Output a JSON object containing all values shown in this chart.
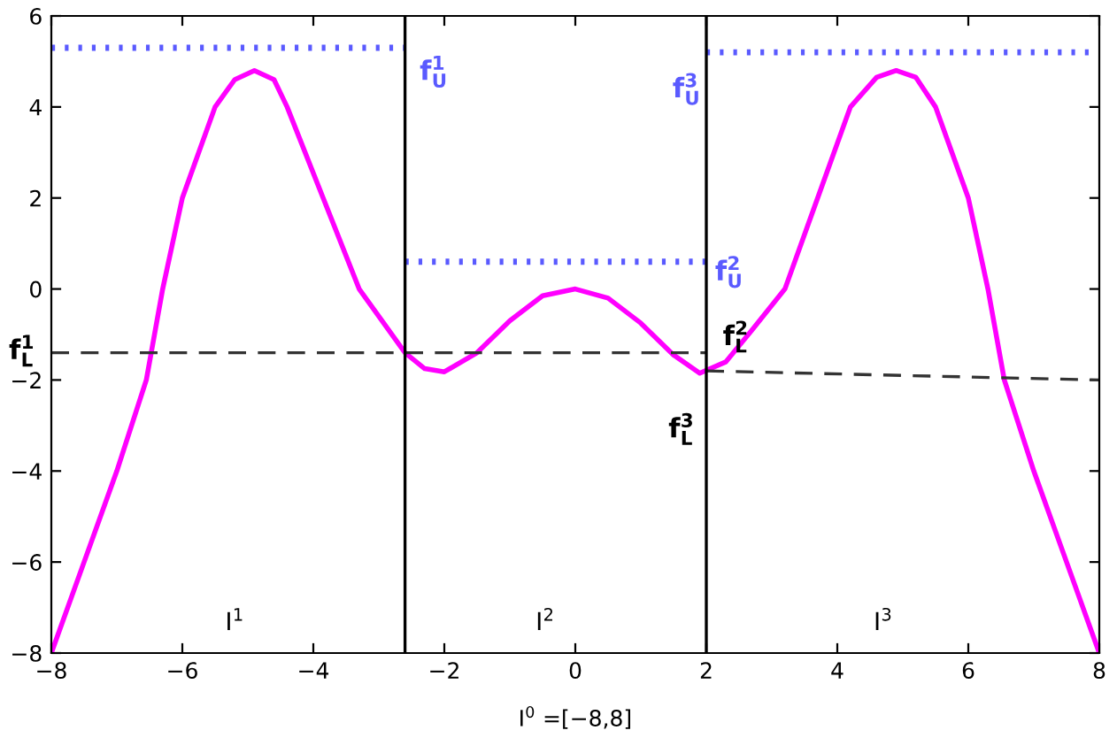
{
  "chart_data": {
    "type": "line",
    "xlabel": "I$^{0}$ =[−8,8]",
    "xlim": [
      -8,
      8
    ],
    "xticks": [
      -8,
      -6,
      -4,
      -2,
      0,
      2,
      4,
      6,
      8
    ],
    "ylim": [
      -8,
      6
    ],
    "yticks": [
      -8,
      -6,
      -4,
      -2,
      0,
      2,
      4,
      6
    ],
    "grid": false,
    "series": [
      {
        "color": "#ff00ff",
        "line_style": "solid",
        "x": [
          -8,
          -7.5,
          -7,
          -6.55,
          -6.3,
          -6.0,
          -5.5,
          -5.2,
          -4.9,
          -4.6,
          -4.4,
          -3.85,
          -3.3,
          -2.6,
          -2.3,
          -2.0,
          -1.5,
          -1.0,
          -0.5,
          0,
          0.5,
          1.0,
          1.5,
          1.9,
          2.3,
          2.7,
          3.2,
          3.7,
          4.2,
          4.6,
          4.9,
          5.2,
          5.5,
          6.0,
          6.3,
          6.55,
          7.0,
          7.5,
          8
        ],
        "values": [
          -8,
          -6,
          -4,
          -2,
          0,
          2,
          4,
          4.6,
          4.8,
          4.6,
          4,
          2,
          0,
          -1.4,
          -1.75,
          -1.82,
          -1.4,
          -0.7,
          -0.15,
          0,
          -0.2,
          -0.75,
          -1.45,
          -1.85,
          -1.6,
          -0.9,
          0,
          2,
          4,
          4.65,
          4.8,
          4.65,
          4,
          2,
          0,
          -2,
          -4,
          -6,
          -8
        ]
      },
      {
        "color": "#5a5aff",
        "line_style": "dotted",
        "x": [
          -8,
          -2.6
        ],
        "values": [
          5.3,
          5.3
        ]
      },
      {
        "color": "#5a5aff",
        "line_style": "dotted",
        "x": [
          -2.6,
          2
        ],
        "values": [
          0.6,
          0.6
        ]
      },
      {
        "color": "#5a5aff",
        "line_style": "dotted",
        "x": [
          2,
          8
        ],
        "values": [
          5.2,
          5.2
        ]
      },
      {
        "color": "#333333",
        "line_style": "dashed",
        "x": [
          -8,
          2
        ],
        "values": [
          -1.4,
          -1.4
        ]
      },
      {
        "color": "#333333",
        "line_style": "dashed",
        "x": [
          2,
          8
        ],
        "values": [
          -1.8,
          -2.0
        ]
      }
    ],
    "ref_lines": [
      {
        "axis": "x",
        "value": -2.6,
        "color": "#000000"
      },
      {
        "axis": "x",
        "value": 2,
        "color": "#000000"
      }
    ],
    "annotations": [
      "f$^{1}$$_{U}$",
      "f$^{3}$$_{U}$",
      "f$^{2}$$_{U}$",
      "f$^{1}$$_{L}$",
      "f$^{2}$$_{L}$",
      "f$^{3}$$_{L}$",
      "I$^{1}$",
      "I$^{2}$",
      "I$^{3}$"
    ]
  }
}
